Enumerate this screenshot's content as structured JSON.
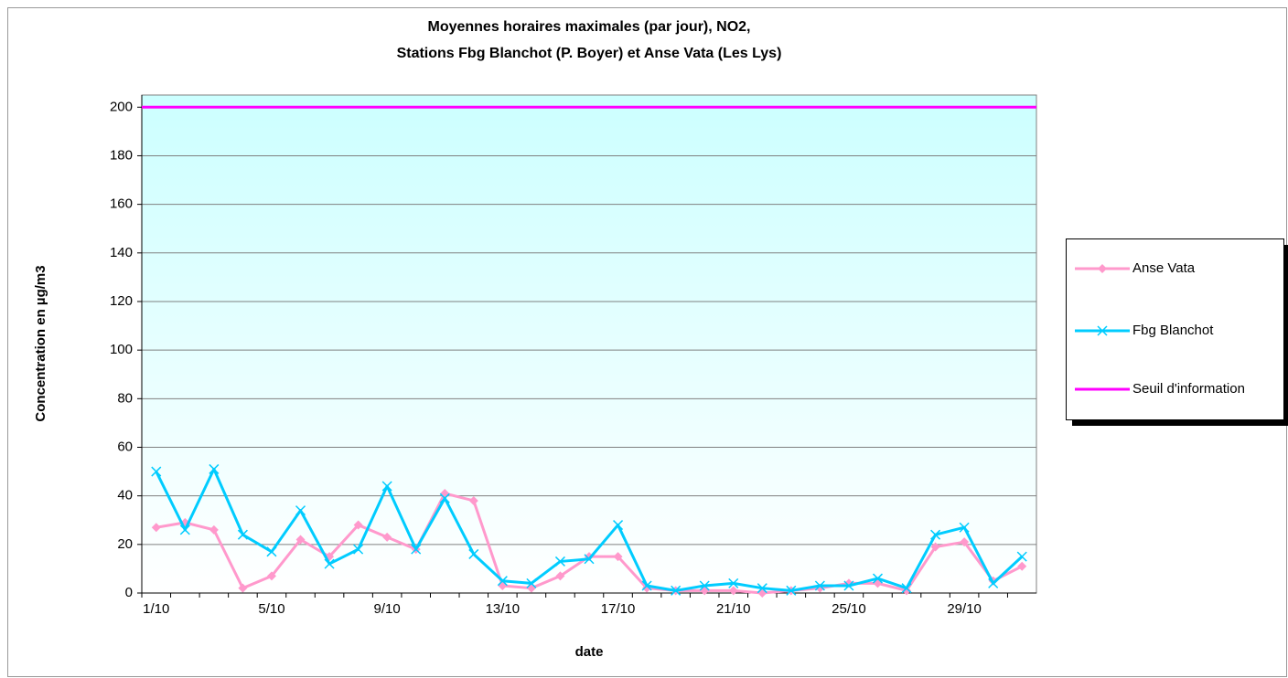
{
  "chart_data": {
    "type": "line",
    "title": [
      "Moyennes horaires maximales (par jour), NO2,",
      "Stations Fbg Blanchot (P. Boyer) et Anse Vata (Les Lys)"
    ],
    "x_label": "date",
    "y_label": "Concentration en µg/m3",
    "categories": [
      "1/10",
      null,
      null,
      null,
      "5/10",
      null,
      null,
      null,
      "9/10",
      null,
      null,
      null,
      "13/10",
      null,
      null,
      null,
      "17/10",
      null,
      null,
      null,
      "21/10",
      null,
      null,
      null,
      "25/10",
      null,
      null,
      null,
      "29/10",
      null,
      null
    ],
    "series": [
      {
        "name": "Anse Vata",
        "color": "#ff99cc",
        "marker": "diamond",
        "values": [
          27,
          29,
          26,
          2,
          7,
          22,
          15,
          28,
          23,
          18,
          41,
          38,
          3,
          2,
          7,
          15,
          15,
          2,
          1,
          1,
          1,
          0,
          1,
          2,
          4,
          4,
          1,
          19,
          21,
          5,
          11
        ]
      },
      {
        "name": "Fbg Blanchot",
        "color": "#00ccff",
        "marker": "x",
        "values": [
          50,
          26,
          51,
          24,
          17,
          34,
          12,
          18,
          44,
          18,
          39,
          16,
          5,
          4,
          13,
          14,
          28,
          3,
          1,
          3,
          4,
          2,
          1,
          3,
          3,
          6,
          2,
          24,
          27,
          4,
          15
        ]
      }
    ],
    "threshold": {
      "name": "Seuil d'information",
      "color": "#ff00ff",
      "value": 200
    },
    "ylim": [
      0,
      205
    ],
    "yticks": [
      0,
      20,
      40,
      60,
      80,
      100,
      120,
      140,
      160,
      180,
      200
    ],
    "grid": true,
    "legend": "right"
  }
}
